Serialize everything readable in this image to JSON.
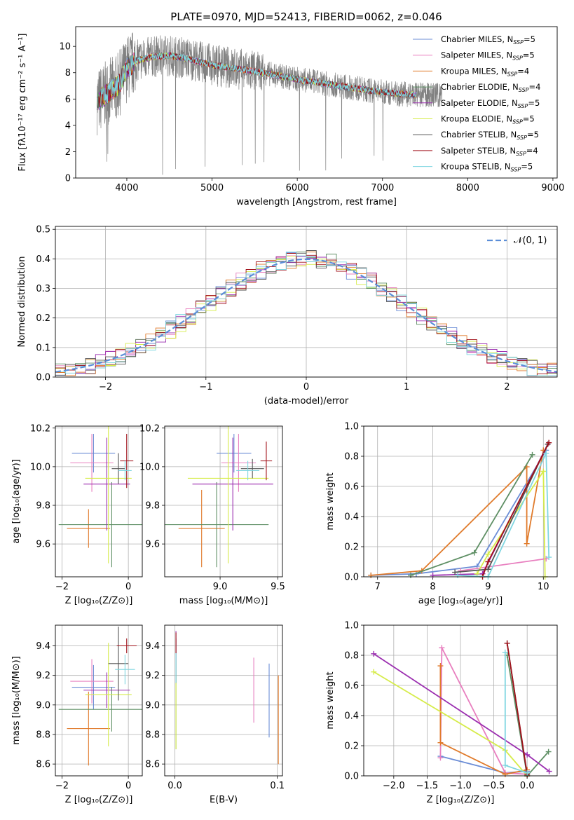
{
  "figure": {
    "title": "PLATE=0970, MJD=52413, FIBERID=0062, z=0.046"
  },
  "colors": {
    "chabrier_miles": "#6b8dd6",
    "salpeter_miles": "#e87fbf",
    "kroupa_miles": "#e07a2a",
    "chabrier_elodie": "#5e8f64",
    "salpeter_elodie": "#9b2fb0",
    "kroupa_elodie": "#d6ec4a",
    "chabrier_stelib": "#555555",
    "salpeter_stelib": "#a0111a",
    "kroupa_stelib": "#7fd6e0",
    "data": "#808080",
    "gaussian": "#5b8ed8",
    "grid": "#b0b0b0"
  },
  "chart_data": [
    {
      "id": "spectrum",
      "type": "line",
      "xlabel": "wavelength [Angstrom, rest frame]",
      "ylabel": "Flux [fλ10⁻¹⁷ erg cm⁻² s⁻¹ A⁻¹]",
      "xlim": [
        3400,
        9050
      ],
      "ylim": [
        0,
        11.5
      ],
      "xticks": [
        4000,
        5000,
        6000,
        7000,
        8000,
        9000
      ],
      "yticks": [
        0,
        2,
        4,
        6,
        8,
        10
      ],
      "grid": false,
      "legend_position": "top-right",
      "continuum": {
        "x": [
          3650,
          3800,
          3900,
          4000,
          4100,
          4300,
          4500,
          4700,
          5000,
          5300,
          5600,
          6000,
          6300,
          6600,
          6900,
          7200,
          7400
        ],
        "y": [
          5.8,
          6.6,
          7.0,
          8.3,
          8.9,
          9.2,
          9.3,
          9.1,
          8.6,
          8.3,
          8.0,
          7.5,
          7.2,
          6.9,
          6.6,
          6.4,
          6.3
        ]
      },
      "series": [
        {
          "name": "Chabrier MILES, N_SSP=5",
          "label_main": "Chabrier MILES, N",
          "label_sub": "SSP",
          "label_tail": "=5",
          "color_key": "chabrier_miles"
        },
        {
          "name": "Salpeter MILES, N_SSP=5",
          "label_main": "Salpeter MILES, N",
          "label_sub": "SSP",
          "label_tail": "=5",
          "color_key": "salpeter_miles"
        },
        {
          "name": "Kroupa MILES, N_SSP=4",
          "label_main": "Kroupa MILES, N",
          "label_sub": "SSP",
          "label_tail": "=4",
          "color_key": "kroupa_miles"
        },
        {
          "name": "Chabrier ELODIE, N_SSP=4",
          "label_main": "Chabrier ELODIE, N",
          "label_sub": "SSP",
          "label_tail": "=4",
          "color_key": "chabrier_elodie"
        },
        {
          "name": "Salpeter ELODIE, N_SSP=5",
          "label_main": "Salpeter ELODIE, N",
          "label_sub": "SSP",
          "label_tail": "=5",
          "color_key": "salpeter_elodie"
        },
        {
          "name": "Kroupa ELODIE, N_SSP=5",
          "label_main": "Kroupa ELODIE, N",
          "label_sub": "SSP",
          "label_tail": "=5",
          "color_key": "kroupa_elodie"
        },
        {
          "name": "Chabrier STELIB, N_SSP=5",
          "label_main": "Chabrier STELIB, N",
          "label_sub": "SSP",
          "label_tail": "=5",
          "color_key": "chabrier_stelib"
        },
        {
          "name": "Salpeter STELIB, N_SSP=4",
          "label_main": "Salpeter STELIB, N",
          "label_sub": "SSP",
          "label_tail": "=4",
          "color_key": "salpeter_stelib"
        },
        {
          "name": "Kroupa STELIB, N_SSP=5",
          "label_main": "Kroupa STELIB, N",
          "label_sub": "SSP",
          "label_tail": "=5",
          "color_key": "kroupa_stelib"
        }
      ]
    },
    {
      "id": "residuals",
      "type": "line",
      "xlabel": "(data-model)/error",
      "ylabel": "Normed distribution",
      "xlim": [
        -2.5,
        2.5
      ],
      "ylim": [
        0,
        0.51
      ],
      "xticks": [
        -2,
        -1,
        0,
        1,
        2
      ],
      "yticks": [
        0.0,
        0.1,
        0.2,
        0.3,
        0.4,
        0.5
      ],
      "grid": true,
      "legend_position": "top-right",
      "legend": "𝒩(0, 1)",
      "gaussian": {
        "mean": 0,
        "sigma": 1
      },
      "bin_width": 0.1
    },
    {
      "id": "age_vs_z",
      "type": "scatter",
      "xlabel": "Z [log₁₀(Z/Z⊙)]",
      "ylabel": "age  [log₁₀(age/yr)]",
      "xlim": [
        -2.2,
        0.42
      ],
      "ylim": [
        9.43,
        10.21
      ],
      "xticks": [
        -2,
        0
      ],
      "yticks": [
        9.6,
        9.8,
        10.0,
        10.2
      ],
      "grid": true,
      "points": [
        {
          "c": "chabrier_miles",
          "x": -1.05,
          "xerr": 0.65,
          "y": 10.07,
          "yerr": 0.1
        },
        {
          "c": "salpeter_miles",
          "x": -1.1,
          "xerr": 0.65,
          "y": 10.02,
          "yerr": 0.15
        },
        {
          "c": "kroupa_miles",
          "x": -1.2,
          "xerr": 0.65,
          "y": 9.68,
          "yerr": 0.1
        },
        {
          "c": "chabrier_elodie",
          "x": -0.5,
          "xerr": 1.6,
          "y": 9.7,
          "yerr": 0.22
        },
        {
          "c": "salpeter_elodie",
          "x": -0.65,
          "xerr": 0.7,
          "y": 9.91,
          "yerr": 0.24
        },
        {
          "c": "kroupa_elodie",
          "x": -0.6,
          "xerr": 0.7,
          "y": 9.94,
          "yerr": 0.44
        },
        {
          "c": "chabrier_stelib",
          "x": -0.3,
          "xerr": 0.2,
          "y": 9.99,
          "yerr": 0.08
        },
        {
          "c": "salpeter_stelib",
          "x": -0.05,
          "xerr": 0.2,
          "y": 10.03,
          "yerr": 0.14
        },
        {
          "c": "kroupa_stelib",
          "x": -0.1,
          "xerr": 0.2,
          "y": 9.98,
          "yerr": 0.05
        }
      ]
    },
    {
      "id": "age_vs_mass",
      "type": "scatter",
      "xlabel": "mass [log₁₀(M/M⊙)]",
      "ylabel": "",
      "xlim": [
        8.52,
        9.54
      ],
      "ylim": [
        9.43,
        10.21
      ],
      "xticks": [
        9.0,
        9.5
      ],
      "yticks": [
        9.6,
        9.8,
        10.0,
        10.2
      ],
      "grid": true,
      "points": [
        {
          "c": "chabrier_miles",
          "x": 9.12,
          "xerr": 0.15,
          "y": 10.07,
          "yerr": 0.1
        },
        {
          "c": "salpeter_miles",
          "x": 9.16,
          "xerr": 0.15,
          "y": 10.02,
          "yerr": 0.15
        },
        {
          "c": "kroupa_miles",
          "x": 8.84,
          "xerr": 0.2,
          "y": 9.68,
          "yerr": 0.2
        },
        {
          "c": "chabrier_elodie",
          "x": 8.97,
          "xerr": 0.45,
          "y": 9.7,
          "yerr": 0.22
        },
        {
          "c": "salpeter_elodie",
          "x": 9.11,
          "xerr": 0.35,
          "y": 9.91,
          "yerr": 0.24
        },
        {
          "c": "kroupa_elodie",
          "x": 9.07,
          "xerr": 0.35,
          "y": 9.94,
          "yerr": 0.44
        },
        {
          "c": "chabrier_stelib",
          "x": 9.28,
          "xerr": 0.1,
          "y": 9.99,
          "yerr": 0.05
        },
        {
          "c": "salpeter_stelib",
          "x": 9.4,
          "xerr": 0.05,
          "y": 10.03,
          "yerr": 0.1
        },
        {
          "c": "kroupa_stelib",
          "x": 9.24,
          "xerr": 0.1,
          "y": 9.98,
          "yerr": 0.05
        }
      ]
    },
    {
      "id": "weight_vs_age",
      "type": "line",
      "xlabel": "age  [log₁₀(age/yr)]",
      "ylabel": "mass weight",
      "xlim": [
        6.75,
        10.25
      ],
      "ylim": [
        0,
        1
      ],
      "xticks": [
        7,
        8,
        9,
        10
      ],
      "yticks": [
        0.0,
        0.2,
        0.4,
        0.6,
        0.8,
        1.0
      ],
      "grid": true,
      "series": [
        {
          "c": "chabrier_miles",
          "x": [
            6.88,
            7.7,
            8.8,
            10.05
          ],
          "y": [
            0.01,
            0.02,
            0.07,
            0.84
          ]
        },
        {
          "c": "salpeter_miles",
          "x": [
            8.5,
            10.05
          ],
          "y": [
            0.04,
            0.12
          ]
        },
        {
          "c": "kroupa_miles",
          "x": [
            6.88,
            7.8,
            9.7,
            9.7,
            10.0
          ],
          "y": [
            0.01,
            0.04,
            0.73,
            0.22,
            0.84
          ]
        },
        {
          "c": "chabrier_elodie",
          "x": [
            7.6,
            8.75,
            9.8
          ],
          "y": [
            0.01,
            0.16,
            0.81
          ]
        },
        {
          "c": "salpeter_elodie",
          "x": [
            8.0,
            8.9,
            10.08
          ],
          "y": [
            0.01,
            0.02,
            0.88
          ]
        },
        {
          "c": "kroupa_elodie",
          "x": [
            8.8,
            9.0,
            10.0,
            10.03
          ],
          "y": [
            0.02,
            0.15,
            0.7,
            0.0
          ]
        },
        {
          "c": "chabrier_stelib",
          "x": [
            8.4,
            9.0,
            10.08
          ],
          "y": [
            0.03,
            0.05,
            0.88
          ]
        },
        {
          "c": "salpeter_stelib",
          "x": [
            8.9,
            9.0,
            10.1
          ],
          "y": [
            0.0,
            0.1,
            0.89
          ]
        },
        {
          "c": "kroupa_stelib",
          "x": [
            8.45,
            9.0,
            10.05,
            10.1
          ],
          "y": [
            0.01,
            0.0,
            0.82,
            0.13
          ]
        }
      ]
    },
    {
      "id": "mass_vs_z",
      "type": "scatter",
      "xlabel": "Z [log₁₀(Z/Z⊙)]",
      "ylabel": "mass [log₁₀(M/M⊙)]",
      "xlim": [
        -2.2,
        0.42
      ],
      "ylim": [
        8.52,
        9.54
      ],
      "xticks": [
        -2,
        0
      ],
      "yticks": [
        8.6,
        8.8,
        9.0,
        9.2,
        9.4
      ],
      "grid": true,
      "points": [
        {
          "c": "chabrier_miles",
          "x": -1.05,
          "xerr": 0.65,
          "y": 9.12,
          "yerr": 0.15
        },
        {
          "c": "salpeter_miles",
          "x": -1.1,
          "xerr": 0.65,
          "y": 9.16,
          "yerr": 0.15
        },
        {
          "c": "kroupa_miles",
          "x": -1.2,
          "xerr": 0.65,
          "y": 8.84,
          "yerr": 0.25
        },
        {
          "c": "chabrier_elodie",
          "x": -0.5,
          "xerr": 1.6,
          "y": 8.97,
          "yerr": 0.15
        },
        {
          "c": "salpeter_elodie",
          "x": -0.65,
          "xerr": 0.7,
          "y": 9.1,
          "yerr": 0.12
        },
        {
          "c": "kroupa_elodie",
          "x": -0.6,
          "xerr": 0.7,
          "y": 9.07,
          "yerr": 0.35
        },
        {
          "c": "chabrier_stelib",
          "x": -0.3,
          "xerr": 0.3,
          "y": 9.28,
          "yerr": 0.25
        },
        {
          "c": "salpeter_stelib",
          "x": -0.05,
          "xerr": 0.3,
          "y": 9.4,
          "yerr": 0.05
        },
        {
          "c": "kroupa_stelib",
          "x": -0.1,
          "xerr": 0.3,
          "y": 9.24,
          "yerr": 0.1
        }
      ]
    },
    {
      "id": "mass_vs_ebv",
      "type": "scatter",
      "xlabel": "E(B-V)",
      "ylabel": "",
      "xlim": [
        -0.01,
        0.105
      ],
      "ylim": [
        8.52,
        9.54
      ],
      "xticks": [
        0.0,
        0.1
      ],
      "yticks": [
        8.6,
        8.8,
        9.0,
        9.2,
        9.4
      ],
      "grid": true,
      "points": [
        {
          "c": "chabrier_miles",
          "x": 0.092,
          "xerr": 0,
          "y": 9.03,
          "yerr": 0.25
        },
        {
          "c": "salpeter_miles",
          "x": 0.077,
          "xerr": 0,
          "y": 9.1,
          "yerr": 0.22
        },
        {
          "c": "kroupa_miles",
          "x": 0.101,
          "xerr": 0,
          "y": 8.9,
          "yerr": 0.3
        },
        {
          "c": "chabrier_elodie",
          "x": 0.001,
          "xerr": 0,
          "y": 9.0,
          "yerr": 0.3
        },
        {
          "c": "salpeter_elodie",
          "x": 0.001,
          "xerr": 0,
          "y": 9.4,
          "yerr": 0.1
        },
        {
          "c": "kroupa_elodie",
          "x": 0.001,
          "xerr": 0,
          "y": 8.95,
          "yerr": 0.25
        },
        {
          "c": "chabrier_stelib",
          "x": 0.001,
          "xerr": 0,
          "y": 9.3,
          "yerr": 0.15
        },
        {
          "c": "salpeter_stelib",
          "x": 0.001,
          "xerr": 0,
          "y": 9.42,
          "yerr": 0.07
        },
        {
          "c": "kroupa_stelib",
          "x": 0.001,
          "xerr": 0,
          "y": 9.25,
          "yerr": 0.1
        }
      ]
    },
    {
      "id": "weight_vs_z",
      "type": "line",
      "xlabel": "Z [log₁₀(Z/Z⊙)]",
      "ylabel": "mass weight",
      "xlim": [
        -2.45,
        0.45
      ],
      "ylim": [
        0,
        1
      ],
      "xticks": [
        -2.0,
        -1.5,
        -1.0,
        -0.5,
        0.0,
        0.5
      ],
      "yticks": [
        0.0,
        0.2,
        0.4,
        0.6,
        0.8,
        1.0
      ],
      "grid": true,
      "series": [
        {
          "c": "chabrier_miles",
          "x": [
            -1.3,
            -0.33,
            0.0
          ],
          "y": [
            0.13,
            0.02,
            0.03
          ]
        },
        {
          "c": "salpeter_miles",
          "x": [
            -1.3,
            -1.28,
            -0.33,
            0.0
          ],
          "y": [
            0.12,
            0.85,
            0.02,
            0.01
          ]
        },
        {
          "c": "kroupa_miles",
          "x": [
            -1.3,
            -1.3,
            -0.33,
            0.0
          ],
          "y": [
            0.73,
            0.22,
            0.01,
            0.04
          ]
        },
        {
          "c": "chabrier_elodie",
          "x": [
            -0.3,
            0.0,
            0.32
          ],
          "y": [
            0.8,
            0.0,
            0.16
          ]
        },
        {
          "c": "salpeter_elodie",
          "x": [
            -2.3,
            0.0,
            0.33
          ],
          "y": [
            0.81,
            0.14,
            0.03
          ]
        },
        {
          "c": "kroupa_elodie",
          "x": [
            -2.3,
            -0.33,
            0.0
          ],
          "y": [
            0.69,
            0.17,
            0.0
          ]
        },
        {
          "c": "chabrier_stelib",
          "x": [
            -0.3,
            0.0
          ],
          "y": [
            0.88,
            0.0
          ]
        },
        {
          "c": "salpeter_stelib",
          "x": [
            -0.3,
            0.0
          ],
          "y": [
            0.88,
            0.01
          ]
        },
        {
          "c": "kroupa_stelib",
          "x": [
            -0.33,
            -0.33,
            0.0
          ],
          "y": [
            0.82,
            0.07,
            0.02
          ]
        }
      ]
    }
  ]
}
